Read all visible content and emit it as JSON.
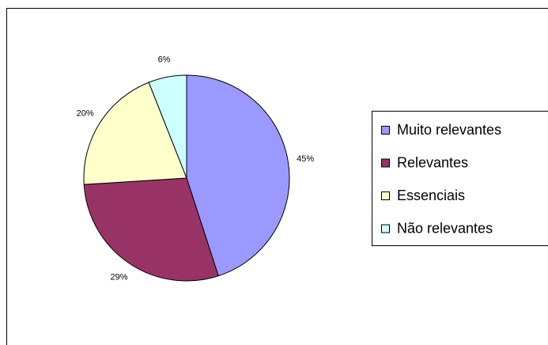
{
  "chart_data": {
    "type": "pie",
    "categories": [
      "Muito relevantes",
      "Relevantes",
      "Essenciais",
      "Não relevantes"
    ],
    "values": [
      45,
      29,
      20,
      6
    ],
    "value_labels": [
      "45%",
      "29%",
      "20%",
      "6%"
    ],
    "colors": [
      "#9999ff",
      "#993366",
      "#ffffcc",
      "#ccffff"
    ],
    "legend": "right"
  }
}
